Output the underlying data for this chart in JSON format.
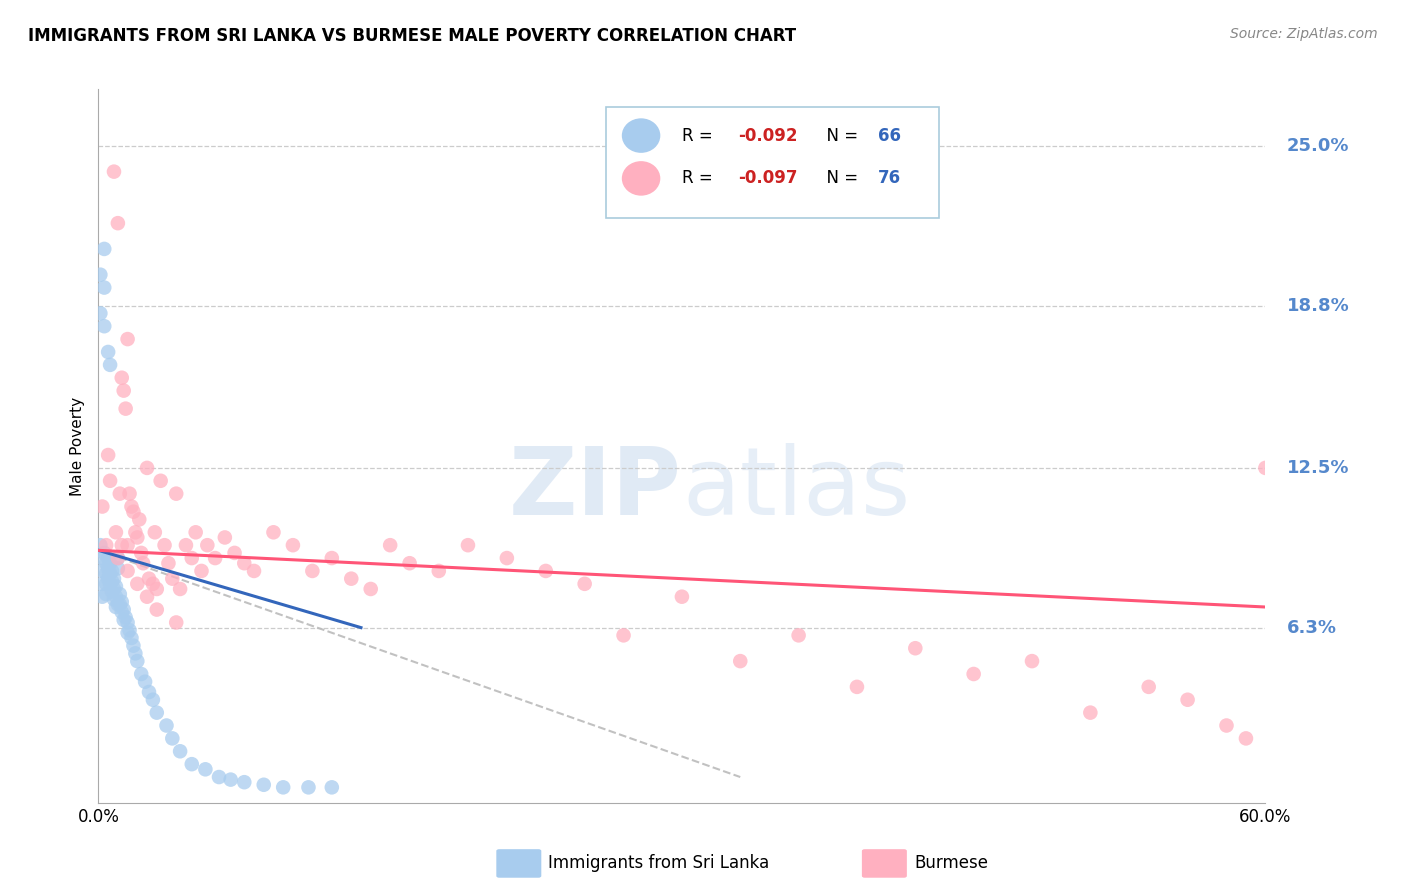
{
  "title": "IMMIGRANTS FROM SRI LANKA VS BURMESE MALE POVERTY CORRELATION CHART",
  "source": "Source: ZipAtlas.com",
  "ylabel": "Male Poverty",
  "ytick_labels": [
    "6.3%",
    "12.5%",
    "18.8%",
    "25.0%"
  ],
  "ytick_values": [
    0.063,
    0.125,
    0.188,
    0.25
  ],
  "xmin": 0.0,
  "xmax": 0.6,
  "ymin": -0.005,
  "ymax": 0.272,
  "color_blue": "#A8CCEE",
  "color_pink": "#FFB0C0",
  "color_line_blue": "#3366BB",
  "color_line_pink": "#FF5577",
  "color_dashed_line": "#BBBBBB",
  "color_axis_label": "#5588CC",
  "color_grid": "#CCCCCC",
  "watermark_color": "#DDEEFF",
  "legend_r1_val": "-0.092",
  "legend_n1_val": "66",
  "legend_r2_val": "-0.097",
  "legend_n2_val": "76",
  "legend_r_color": "#CC2222",
  "legend_n_color": "#3366BB",
  "sl_line_x0": 0.0,
  "sl_line_x1": 0.135,
  "sl_line_y0": 0.093,
  "sl_line_y1": 0.063,
  "bu_line_x0": 0.0,
  "bu_line_x1": 0.6,
  "bu_line_y0": 0.093,
  "bu_line_y1": 0.071,
  "dash_line_x0": 0.0,
  "dash_line_x1": 0.33,
  "dash_line_y0": 0.093,
  "dash_line_y1": 0.005,
  "sl_x": [
    0.001,
    0.001,
    0.001,
    0.002,
    0.002,
    0.002,
    0.002,
    0.003,
    0.003,
    0.003,
    0.003,
    0.004,
    0.004,
    0.004,
    0.004,
    0.005,
    0.005,
    0.005,
    0.005,
    0.006,
    0.006,
    0.006,
    0.006,
    0.007,
    0.007,
    0.007,
    0.008,
    0.008,
    0.008,
    0.009,
    0.009,
    0.009,
    0.01,
    0.01,
    0.01,
    0.011,
    0.011,
    0.012,
    0.012,
    0.013,
    0.013,
    0.014,
    0.015,
    0.015,
    0.016,
    0.017,
    0.018,
    0.019,
    0.02,
    0.022,
    0.024,
    0.026,
    0.028,
    0.03,
    0.035,
    0.038,
    0.042,
    0.048,
    0.055,
    0.062,
    0.068,
    0.075,
    0.085,
    0.095,
    0.108,
    0.12
  ],
  "sl_y": [
    0.2,
    0.185,
    0.095,
    0.09,
    0.085,
    0.08,
    0.075,
    0.21,
    0.195,
    0.18,
    0.092,
    0.088,
    0.084,
    0.08,
    0.076,
    0.17,
    0.09,
    0.086,
    0.082,
    0.165,
    0.088,
    0.084,
    0.08,
    0.085,
    0.081,
    0.077,
    0.082,
    0.078,
    0.074,
    0.079,
    0.075,
    0.071,
    0.09,
    0.086,
    0.072,
    0.076,
    0.072,
    0.073,
    0.069,
    0.07,
    0.066,
    0.067,
    0.065,
    0.061,
    0.062,
    0.059,
    0.056,
    0.053,
    0.05,
    0.045,
    0.042,
    0.038,
    0.035,
    0.03,
    0.025,
    0.02,
    0.015,
    0.01,
    0.008,
    0.005,
    0.004,
    0.003,
    0.002,
    0.001,
    0.001,
    0.001
  ],
  "bu_x": [
    0.002,
    0.004,
    0.005,
    0.006,
    0.008,
    0.009,
    0.01,
    0.011,
    0.012,
    0.012,
    0.013,
    0.014,
    0.015,
    0.015,
    0.016,
    0.017,
    0.018,
    0.019,
    0.02,
    0.021,
    0.022,
    0.023,
    0.025,
    0.026,
    0.028,
    0.029,
    0.03,
    0.032,
    0.034,
    0.036,
    0.038,
    0.04,
    0.042,
    0.045,
    0.048,
    0.05,
    0.053,
    0.056,
    0.06,
    0.065,
    0.07,
    0.075,
    0.08,
    0.09,
    0.1,
    0.11,
    0.12,
    0.13,
    0.14,
    0.15,
    0.16,
    0.175,
    0.19,
    0.21,
    0.23,
    0.25,
    0.27,
    0.3,
    0.33,
    0.36,
    0.39,
    0.42,
    0.45,
    0.48,
    0.51,
    0.54,
    0.56,
    0.58,
    0.59,
    0.6,
    0.01,
    0.015,
    0.02,
    0.025,
    0.03,
    0.04
  ],
  "bu_y": [
    0.11,
    0.095,
    0.13,
    0.12,
    0.24,
    0.1,
    0.22,
    0.115,
    0.16,
    0.095,
    0.155,
    0.148,
    0.175,
    0.095,
    0.115,
    0.11,
    0.108,
    0.1,
    0.098,
    0.105,
    0.092,
    0.088,
    0.125,
    0.082,
    0.08,
    0.1,
    0.078,
    0.12,
    0.095,
    0.088,
    0.082,
    0.115,
    0.078,
    0.095,
    0.09,
    0.1,
    0.085,
    0.095,
    0.09,
    0.098,
    0.092,
    0.088,
    0.085,
    0.1,
    0.095,
    0.085,
    0.09,
    0.082,
    0.078,
    0.095,
    0.088,
    0.085,
    0.095,
    0.09,
    0.085,
    0.08,
    0.06,
    0.075,
    0.05,
    0.06,
    0.04,
    0.055,
    0.045,
    0.05,
    0.03,
    0.04,
    0.035,
    0.025,
    0.02,
    0.125,
    0.09,
    0.085,
    0.08,
    0.075,
    0.07,
    0.065
  ]
}
